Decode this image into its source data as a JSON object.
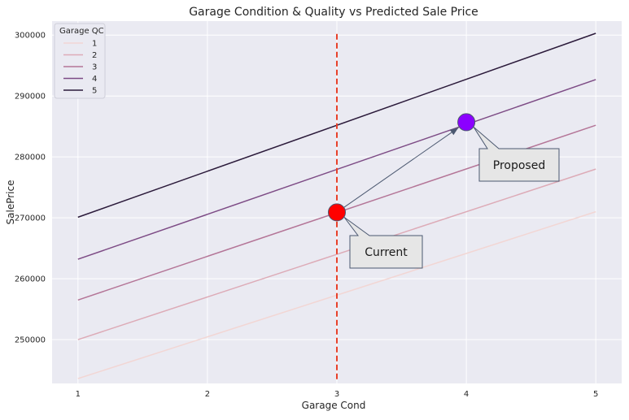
{
  "chart_data": {
    "type": "line",
    "title": "Garage Condition & Quality vs Predicted Sale Price",
    "xlabel": "Garage Cond",
    "ylabel": "SalePrice",
    "xlim": [
      0.8,
      5.2
    ],
    "ylim": [
      242800,
      302300
    ],
    "xticks": [
      1,
      2,
      3,
      4,
      5
    ],
    "yticks": [
      250000,
      260000,
      270000,
      280000,
      290000,
      300000
    ],
    "grid": true,
    "background": "#eaeaf2",
    "gridColor": "#ffffff",
    "legend": {
      "title": "Garage QC",
      "position": "top-left"
    },
    "series": [
      {
        "name": "1",
        "color": "#f2d6d4",
        "x": [
          1,
          5
        ],
        "y": [
          243600,
          271000
        ]
      },
      {
        "name": "2",
        "color": "#ddabb7",
        "x": [
          1,
          5
        ],
        "y": [
          250000,
          278000
        ]
      },
      {
        "name": "3",
        "color": "#b47597",
        "x": [
          1,
          5
        ],
        "y": [
          256500,
          285200
        ]
      },
      {
        "name": "4",
        "color": "#7d4b85",
        "x": [
          1,
          5
        ],
        "y": [
          263200,
          292700
        ]
      },
      {
        "name": "5",
        "color": "#2b1a3a",
        "x": [
          1,
          5
        ],
        "y": [
          270100,
          300300
        ]
      }
    ],
    "vline": {
      "x": 3,
      "color": "#e8412a",
      "y": [
        243500,
        300300
      ]
    },
    "points": [
      {
        "name": "current",
        "x": 3,
        "y": 270900,
        "color": "#ff0000"
      },
      {
        "name": "proposed",
        "x": 4,
        "y": 285700,
        "color": "#8b00ff"
      }
    ],
    "annotations": [
      {
        "name": "current",
        "text": "Current",
        "point": "current"
      },
      {
        "name": "proposed",
        "text": "Proposed",
        "point": "proposed"
      }
    ]
  }
}
